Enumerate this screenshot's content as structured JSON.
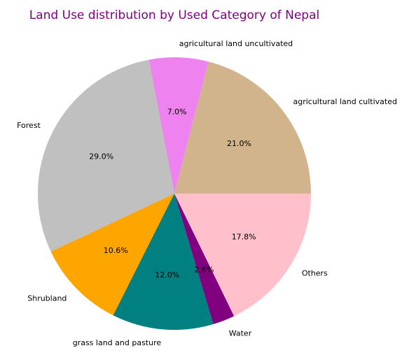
{
  "chart_data": {
    "type": "pie",
    "title": "Land Use distribution by Used Category of Nepal",
    "title_color": "#800080",
    "slices": [
      {
        "label": "agricultural land cultivated",
        "value": 21.0,
        "pct_label": "21.0%",
        "color": "#D2B48C"
      },
      {
        "label": "agricultural land uncultivated",
        "value": 7.0,
        "pct_label": "7.0%",
        "color": "#EE82EE"
      },
      {
        "label": "Forest",
        "value": 29.0,
        "pct_label": "29.0%",
        "color": "#C0C0C0"
      },
      {
        "label": "Shrubland",
        "value": 10.6,
        "pct_label": "10.6%",
        "color": "#FFA500"
      },
      {
        "label": "grass land and pasture",
        "value": 12.0,
        "pct_label": "12.0%",
        "color": "#008080"
      },
      {
        "label": "Water",
        "value": 2.6,
        "pct_label": "2.6%",
        "color": "#800080"
      },
      {
        "label": "Others",
        "value": 17.8,
        "pct_label": "17.8%",
        "color": "#FFC0CB"
      }
    ],
    "start_angle_deg": 0,
    "direction": "counterclockwise"
  }
}
